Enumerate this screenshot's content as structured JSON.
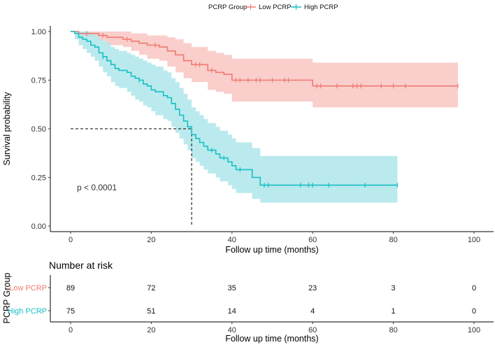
{
  "chart_data": [
    {
      "type": "line",
      "subtype": "kaplan-meier",
      "title": "",
      "xlabel": "Follow up time (months)",
      "ylabel": "Survival probability",
      "xlim": [
        0,
        100
      ],
      "ylim": [
        0,
        1
      ],
      "x_ticks": [
        "0",
        "20",
        "40",
        "60",
        "80",
        "100"
      ],
      "y_ticks": [
        "0.00",
        "0.25",
        "0.50",
        "0.75",
        "1.00"
      ],
      "legend": {
        "title": "PCRP Group",
        "placement": "top",
        "entries": [
          "Low PCRP",
          "High PCRP"
        ]
      },
      "annotation": "p < 0.0001",
      "median_reference": {
        "time": 30,
        "survival": 0.5
      },
      "series": [
        {
          "name": "Low PCRP",
          "color": "#f07b72",
          "band_color": "#f8c6c2",
          "steps": [
            [
              0,
              1.0
            ],
            [
              2,
              0.99
            ],
            [
              7,
              0.98
            ],
            [
              9,
              0.97
            ],
            [
              13,
              0.96
            ],
            [
              15,
              0.95
            ],
            [
              17,
              0.94
            ],
            [
              19,
              0.93
            ],
            [
              22,
              0.92
            ],
            [
              24,
              0.9
            ],
            [
              26,
              0.88
            ],
            [
              28,
              0.85
            ],
            [
              30,
              0.83
            ],
            [
              34,
              0.8
            ],
            [
              36,
              0.79
            ],
            [
              38,
              0.78
            ],
            [
              40,
              0.75
            ],
            [
              60,
              0.72
            ],
            [
              96,
              0.72
            ]
          ],
          "lower": [
            [
              0,
              1.0
            ],
            [
              2,
              0.97
            ],
            [
              7,
              0.95
            ],
            [
              9,
              0.93
            ],
            [
              13,
              0.92
            ],
            [
              15,
              0.9
            ],
            [
              17,
              0.88
            ],
            [
              19,
              0.86
            ],
            [
              22,
              0.85
            ],
            [
              24,
              0.82
            ],
            [
              26,
              0.79
            ],
            [
              28,
              0.76
            ],
            [
              30,
              0.74
            ],
            [
              34,
              0.7
            ],
            [
              36,
              0.69
            ],
            [
              38,
              0.68
            ],
            [
              40,
              0.64
            ],
            [
              60,
              0.61
            ],
            [
              96,
              0.61
            ]
          ],
          "upper": [
            [
              0,
              1.0
            ],
            [
              2,
              1.0
            ],
            [
              7,
              1.0
            ],
            [
              9,
              1.0
            ],
            [
              13,
              1.0
            ],
            [
              15,
              0.99
            ],
            [
              17,
              0.99
            ],
            [
              19,
              0.98
            ],
            [
              22,
              0.98
            ],
            [
              24,
              0.97
            ],
            [
              26,
              0.96
            ],
            [
              28,
              0.94
            ],
            [
              30,
              0.92
            ],
            [
              34,
              0.9
            ],
            [
              36,
              0.89
            ],
            [
              38,
              0.88
            ],
            [
              40,
              0.86
            ],
            [
              60,
              0.84
            ],
            [
              96,
              0.84
            ]
          ],
          "censored": [
            [
              4,
              0.99
            ],
            [
              8,
              0.98
            ],
            [
              14,
              0.96
            ],
            [
              21,
              0.93
            ],
            [
              31,
              0.83
            ],
            [
              32,
              0.83
            ],
            [
              35,
              0.8
            ],
            [
              41,
              0.75
            ],
            [
              42,
              0.75
            ],
            [
              44,
              0.75
            ],
            [
              46,
              0.75
            ],
            [
              47,
              0.75
            ],
            [
              50,
              0.75
            ],
            [
              53,
              0.75
            ],
            [
              54,
              0.75
            ],
            [
              61,
              0.72
            ],
            [
              62,
              0.72
            ],
            [
              66,
              0.72
            ],
            [
              70,
              0.72
            ],
            [
              71,
              0.72
            ],
            [
              72,
              0.72
            ],
            [
              77,
              0.72
            ],
            [
              80,
              0.72
            ],
            [
              83,
              0.72
            ],
            [
              96,
              0.72
            ]
          ]
        },
        {
          "name": "High PCRP",
          "color": "#17bec5",
          "band_color": "#aee6ea",
          "steps": [
            [
              0,
              1.0
            ],
            [
              1,
              0.99
            ],
            [
              2,
              0.97
            ],
            [
              3,
              0.96
            ],
            [
              4,
              0.95
            ],
            [
              5,
              0.93
            ],
            [
              6,
              0.92
            ],
            [
              7,
              0.89
            ],
            [
              8,
              0.87
            ],
            [
              9,
              0.85
            ],
            [
              10,
              0.83
            ],
            [
              11,
              0.81
            ],
            [
              12,
              0.8
            ],
            [
              14,
              0.79
            ],
            [
              15,
              0.77
            ],
            [
              16,
              0.76
            ],
            [
              17,
              0.75
            ],
            [
              18,
              0.73
            ],
            [
              19,
              0.72
            ],
            [
              20,
              0.7
            ],
            [
              21,
              0.69
            ],
            [
              23,
              0.67
            ],
            [
              24,
              0.66
            ],
            [
              25,
              0.63
            ],
            [
              26,
              0.6
            ],
            [
              27,
              0.57
            ],
            [
              28,
              0.54
            ],
            [
              29,
              0.51
            ],
            [
              30,
              0.47
            ],
            [
              31,
              0.45
            ],
            [
              32,
              0.43
            ],
            [
              33,
              0.41
            ],
            [
              34,
              0.39
            ],
            [
              36,
              0.37
            ],
            [
              37,
              0.35
            ],
            [
              39,
              0.33
            ],
            [
              40,
              0.31
            ],
            [
              41,
              0.29
            ],
            [
              45,
              0.25
            ],
            [
              47,
              0.21
            ],
            [
              81,
              0.21
            ]
          ],
          "lower": [
            [
              0,
              1.0
            ],
            [
              1,
              0.96
            ],
            [
              2,
              0.93
            ],
            [
              3,
              0.91
            ],
            [
              4,
              0.89
            ],
            [
              5,
              0.87
            ],
            [
              6,
              0.85
            ],
            [
              7,
              0.82
            ],
            [
              8,
              0.79
            ],
            [
              9,
              0.77
            ],
            [
              10,
              0.74
            ],
            [
              11,
              0.72
            ],
            [
              12,
              0.71
            ],
            [
              14,
              0.69
            ],
            [
              15,
              0.67
            ],
            [
              16,
              0.65
            ],
            [
              17,
              0.64
            ],
            [
              18,
              0.62
            ],
            [
              19,
              0.61
            ],
            [
              20,
              0.59
            ],
            [
              21,
              0.57
            ],
            [
              23,
              0.55
            ],
            [
              24,
              0.54
            ],
            [
              25,
              0.51
            ],
            [
              26,
              0.48
            ],
            [
              27,
              0.45
            ],
            [
              28,
              0.42
            ],
            [
              29,
              0.39
            ],
            [
              30,
              0.35
            ],
            [
              31,
              0.33
            ],
            [
              32,
              0.31
            ],
            [
              33,
              0.29
            ],
            [
              34,
              0.27
            ],
            [
              36,
              0.25
            ],
            [
              37,
              0.23
            ],
            [
              39,
              0.21
            ],
            [
              40,
              0.19
            ],
            [
              41,
              0.17
            ],
            [
              45,
              0.14
            ],
            [
              47,
              0.12
            ],
            [
              81,
              0.12
            ]
          ],
          "upper": [
            [
              0,
              1.0
            ],
            [
              1,
              1.0
            ],
            [
              2,
              1.0
            ],
            [
              3,
              1.0
            ],
            [
              4,
              1.0
            ],
            [
              5,
              0.99
            ],
            [
              6,
              0.98
            ],
            [
              7,
              0.96
            ],
            [
              8,
              0.95
            ],
            [
              9,
              0.94
            ],
            [
              10,
              0.92
            ],
            [
              11,
              0.91
            ],
            [
              12,
              0.9
            ],
            [
              14,
              0.89
            ],
            [
              15,
              0.88
            ],
            [
              16,
              0.87
            ],
            [
              17,
              0.86
            ],
            [
              18,
              0.85
            ],
            [
              19,
              0.84
            ],
            [
              20,
              0.83
            ],
            [
              21,
              0.82
            ],
            [
              23,
              0.8
            ],
            [
              24,
              0.79
            ],
            [
              25,
              0.76
            ],
            [
              26,
              0.74
            ],
            [
              27,
              0.71
            ],
            [
              28,
              0.68
            ],
            [
              29,
              0.65
            ],
            [
              30,
              0.61
            ],
            [
              31,
              0.59
            ],
            [
              32,
              0.57
            ],
            [
              33,
              0.55
            ],
            [
              34,
              0.53
            ],
            [
              36,
              0.51
            ],
            [
              37,
              0.49
            ],
            [
              39,
              0.47
            ],
            [
              40,
              0.45
            ],
            [
              41,
              0.43
            ],
            [
              45,
              0.4
            ],
            [
              47,
              0.36
            ],
            [
              81,
              0.36
            ]
          ],
          "censored": [
            [
              8,
              0.87
            ],
            [
              17,
              0.75
            ],
            [
              35,
              0.39
            ],
            [
              38,
              0.35
            ],
            [
              42,
              0.29
            ],
            [
              48,
              0.21
            ],
            [
              49,
              0.21
            ],
            [
              57,
              0.21
            ],
            [
              59,
              0.21
            ],
            [
              60,
              0.21
            ],
            [
              64,
              0.21
            ],
            [
              73,
              0.21
            ],
            [
              81,
              0.21
            ]
          ]
        }
      ]
    },
    {
      "type": "table",
      "title": "Number at risk",
      "xlabel": "Follow up time (months)",
      "ylabel": "PCRP Group",
      "x_ticks": [
        "0",
        "20",
        "40",
        "60",
        "80",
        "100"
      ],
      "times": [
        0,
        20,
        40,
        60,
        80,
        100
      ],
      "rows": [
        {
          "name": "Low PCRP",
          "color": "#f07b72",
          "values": [
            "89",
            "72",
            "35",
            "23",
            "3",
            "0"
          ]
        },
        {
          "name": "High PCRP",
          "color": "#17bec5",
          "values": [
            "75",
            "51",
            "14",
            "4",
            "1",
            "0"
          ]
        }
      ]
    }
  ]
}
